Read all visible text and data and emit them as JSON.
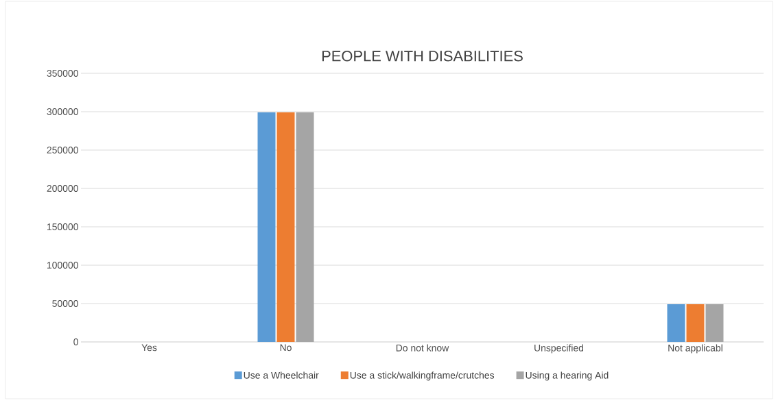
{
  "chart_data": {
    "type": "bar",
    "title": "PEOPLE WITH DISABILITIES",
    "categories": [
      "Yes",
      "No",
      "Do not know",
      "Unspecified",
      "Not applicabl"
    ],
    "series": [
      {
        "name": "Use a Wheelchair",
        "color": "#5b9bd5",
        "values": [
          0,
          299000,
          0,
          0,
          49000
        ]
      },
      {
        "name": "Use a stick/walkingframe/crutches",
        "color": "#ed7d31",
        "values": [
          0,
          299000,
          0,
          0,
          49000
        ]
      },
      {
        "name": "Using a hearing Aid",
        "color": "#a5a5a5",
        "values": [
          0,
          299000,
          0,
          0,
          49000
        ]
      }
    ],
    "ylim": [
      0,
      350000
    ],
    "yticks": [
      0,
      50000,
      100000,
      150000,
      200000,
      250000,
      300000,
      350000
    ],
    "grid": "y",
    "legend": "bottom"
  }
}
